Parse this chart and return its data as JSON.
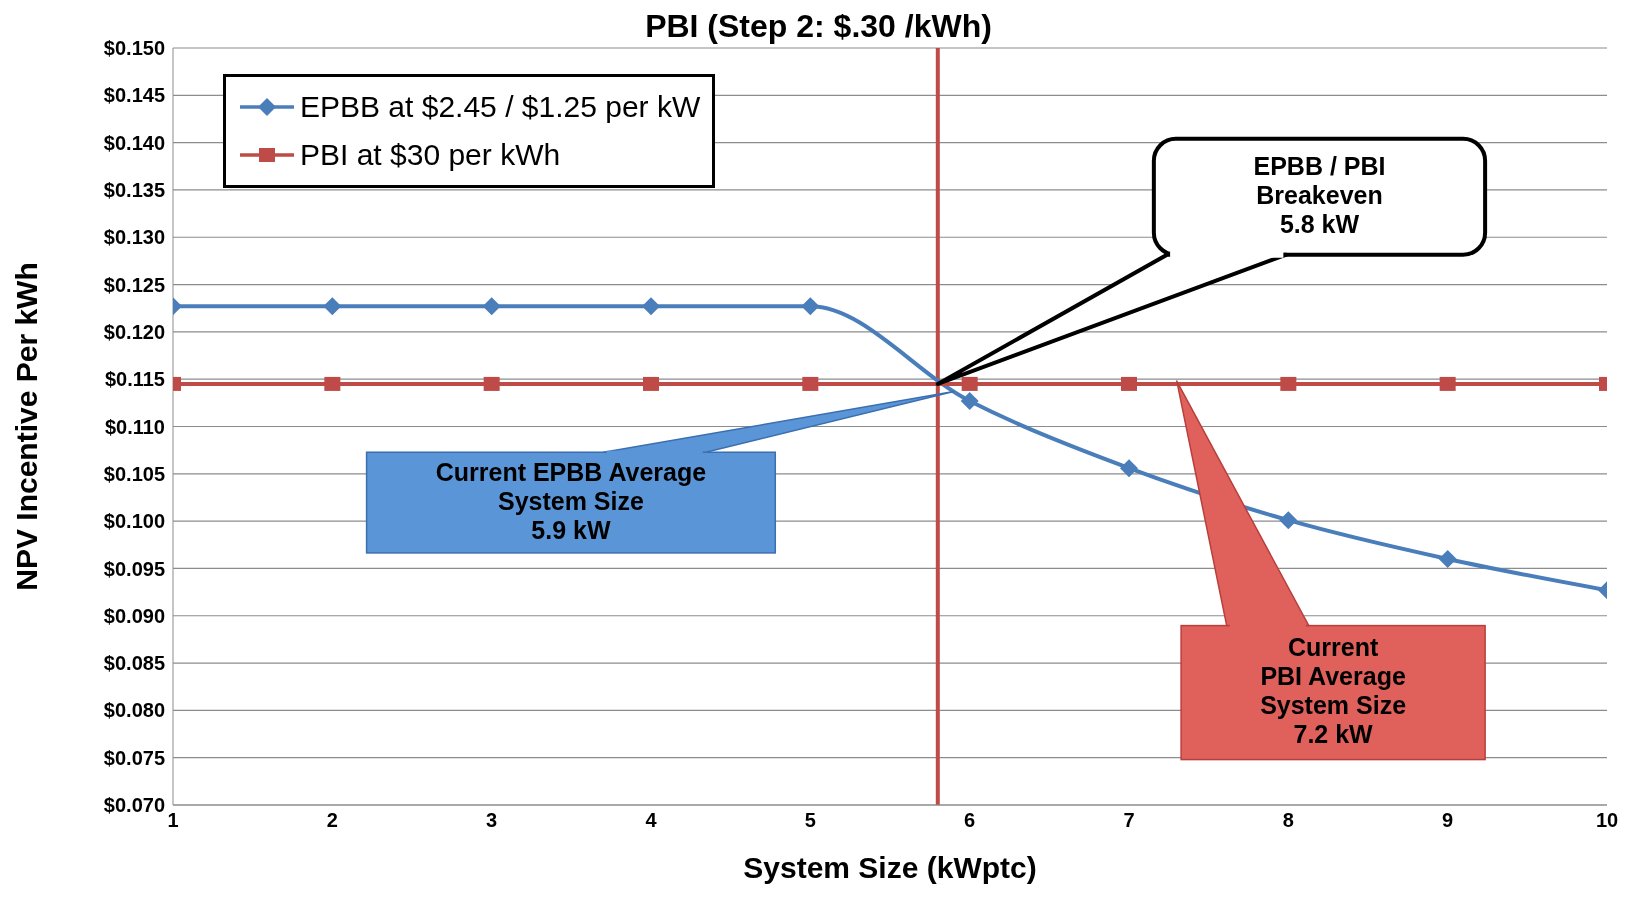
{
  "chart_data": {
    "type": "line",
    "title": "PBI (Step 2: $.30 /kWh)",
    "xlabel": "System Size (kWptc)",
    "ylabel": "NPV Incentive Per kWh",
    "x": [
      1,
      2,
      3,
      4,
      5,
      6,
      7,
      8,
      9,
      10
    ],
    "series": [
      {
        "name": "EPBB at $2.45 / $1.25 per kW",
        "color": "#4a7ebb",
        "marker": "diamond",
        "values": [
          0.1227,
          0.1227,
          0.1227,
          0.1227,
          0.1227,
          0.1127,
          0.1056,
          0.1001,
          0.096,
          0.0927
        ]
      },
      {
        "name": "PBI at $30 per kWh",
        "color": "#be4b48",
        "marker": "square",
        "values": [
          0.1145,
          0.1145,
          0.1145,
          0.1145,
          0.1145,
          0.1145,
          0.1145,
          0.1145,
          0.1145,
          0.1145
        ]
      }
    ],
    "xlim": [
      1,
      10
    ],
    "xticks": [
      1,
      2,
      3,
      4,
      5,
      6,
      7,
      8,
      9,
      10
    ],
    "ylim": [
      0.07,
      0.15
    ],
    "yticks": [
      {
        "value": 0.07,
        "label": "$0.070"
      },
      {
        "value": 0.075,
        "label": "$0.075"
      },
      {
        "value": 0.08,
        "label": "$0.080"
      },
      {
        "value": 0.085,
        "label": "$0.085"
      },
      {
        "value": 0.09,
        "label": "$0.090"
      },
      {
        "value": 0.095,
        "label": "$0.095"
      },
      {
        "value": 0.1,
        "label": "$0.100"
      },
      {
        "value": 0.105,
        "label": "$0.105"
      },
      {
        "value": 0.11,
        "label": "$0.110"
      },
      {
        "value": 0.115,
        "label": "$0.115"
      },
      {
        "value": 0.12,
        "label": "$0.120"
      },
      {
        "value": 0.125,
        "label": "$0.125"
      },
      {
        "value": 0.13,
        "label": "$0.130"
      },
      {
        "value": 0.135,
        "label": "$0.135"
      },
      {
        "value": 0.14,
        "label": "$0.140"
      },
      {
        "value": 0.145,
        "label": "$0.145"
      },
      {
        "value": 0.15,
        "label": "$0.150"
      }
    ],
    "ref_lines": [
      {
        "axis": "x",
        "value": 5.8,
        "color": "#be4b48"
      }
    ],
    "annotations": [
      {
        "text": "EPBB / PBI\nBreakeven\n5.8 kW",
        "x": 5.8,
        "y": 0.1145
      },
      {
        "text": "Current EPBB Average\nSystem Size\n5.9 kW",
        "x": 5.9,
        "y": 0.1137
      },
      "Current\nPBI Average\nSystem Size\n7.2 kW"
    ],
    "grid": "y",
    "legend": "top left",
    "line_style": "solid"
  }
}
